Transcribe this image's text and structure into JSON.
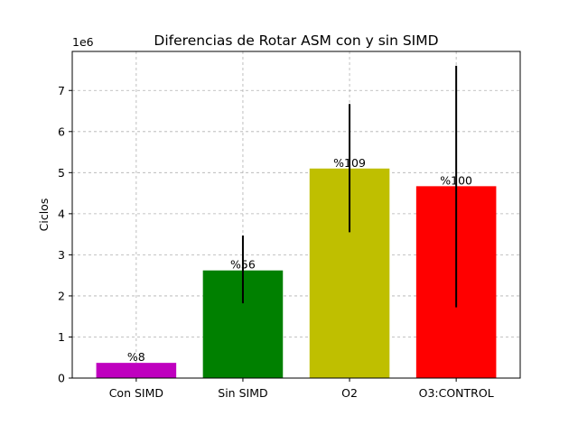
{
  "chart_data": {
    "type": "bar",
    "title": "Diferencias de Rotar ASM con y sin SIMD",
    "ylabel": "Ciclos",
    "xlabel": "",
    "y_scale_label": "1e6",
    "ylim": [
      0,
      7.95
    ],
    "yticks": [
      0,
      1,
      2,
      3,
      4,
      5,
      6,
      7
    ],
    "grid": true,
    "categories": [
      "Con SIMD",
      "Sin SIMD",
      "O2",
      "O3:CONTROL"
    ],
    "values": [
      0.37,
      2.62,
      5.1,
      4.67
    ],
    "errors_low": [
      0.37,
      1.82,
      3.55,
      1.72
    ],
    "errors_high": [
      0.37,
      3.47,
      6.67,
      7.6
    ],
    "bar_labels": [
      "%8",
      "%56",
      "%109",
      "%100"
    ],
    "colors": [
      "#bf00bf",
      "#008000",
      "#bfbf00",
      "#ff0000"
    ]
  }
}
